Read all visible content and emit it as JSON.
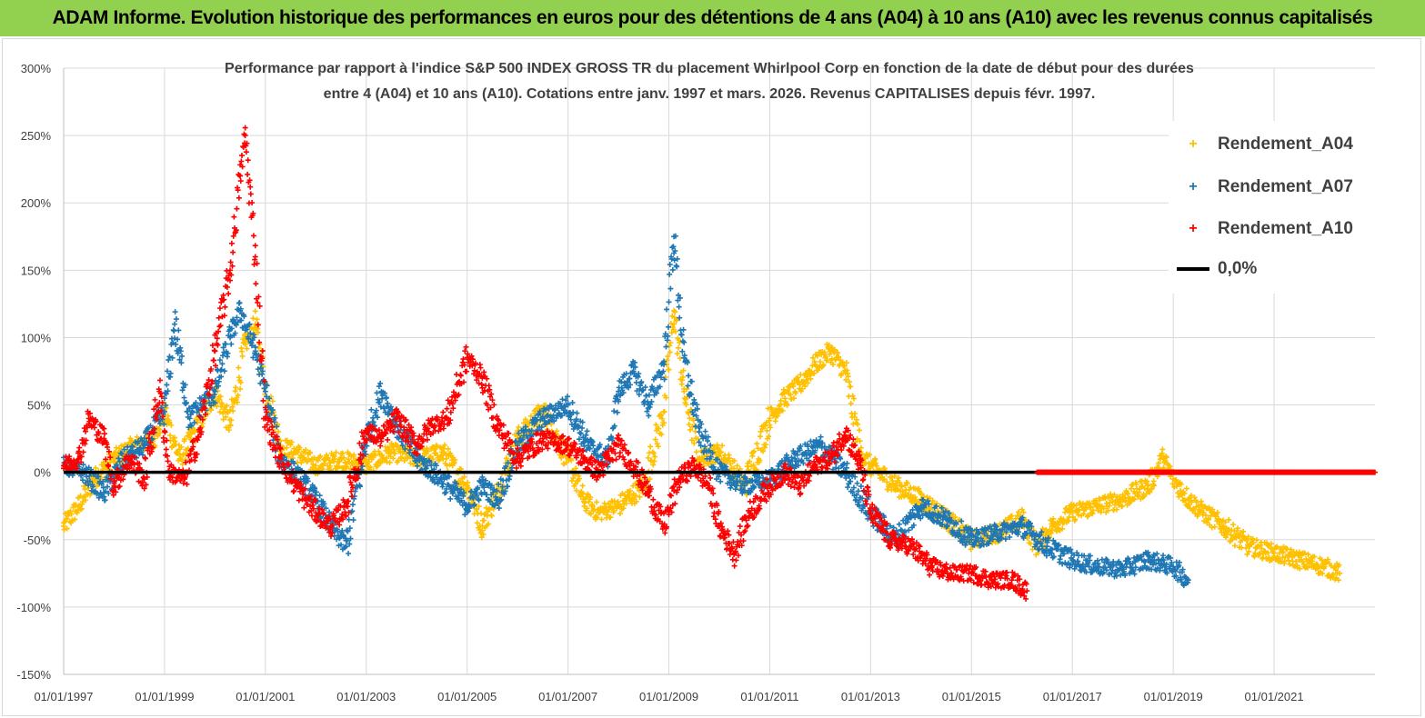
{
  "header": {
    "title": "ADAM Informe. Evolution historique des performances en euros pour des détentions de 4 ans (A04) à 10 ans (A10) avec les revenus connus capitalisés",
    "band_color": "#92d050"
  },
  "chart_data": {
    "type": "scatter",
    "title_line1": "Performance par rapport à l'indice S&P 500 INDEX GROSS TR  du placement Whirlpool Corp en fonction de la date de début pour des durées",
    "title_line2": "entre 4 (A04) et 10 ans (A10). Cotations entre janv. 1997 et mars. 2026. Revenus CAPITALISES depuis févr. 1997.",
    "xlabel": "",
    "ylabel": "",
    "x_unit": "year",
    "xlim": [
      1997.0,
      2023.0
    ],
    "ylim": [
      -150,
      300
    ],
    "y_ticks": [
      300,
      250,
      200,
      150,
      100,
      50,
      0,
      -50,
      -100,
      -150
    ],
    "y_tick_labels": [
      "300%",
      "250%",
      "200%",
      "150%",
      "100%",
      "50%",
      "0%",
      "-50%",
      "-100%",
      "-150%"
    ],
    "x_ticks": [
      1997,
      1999,
      2001,
      2003,
      2005,
      2007,
      2009,
      2011,
      2013,
      2015,
      2017,
      2019,
      2021
    ],
    "x_tick_labels": [
      "01/01/1997",
      "01/01/1999",
      "01/01/2001",
      "01/01/2003",
      "01/01/2005",
      "01/01/2007",
      "01/01/2009",
      "01/01/2011",
      "01/01/2013",
      "01/01/2015",
      "01/01/2017",
      "01/01/2019",
      "01/01/2021"
    ],
    "grid": true,
    "legend_position": "top-right",
    "series": [
      {
        "name": "Rendement_A04",
        "color": "#ffc000",
        "marker": "+",
        "x": [
          1997.0,
          1997.3,
          1997.6,
          1998.0,
          1998.4,
          1998.8,
          1999.0,
          1999.3,
          1999.6,
          2000.0,
          2000.3,
          2000.6,
          2000.8,
          2001.0,
          2001.3,
          2001.6,
          2002.0,
          2002.5,
          2003.0,
          2003.5,
          2004.0,
          2004.5,
          2005.0,
          2005.3,
          2005.6,
          2006.0,
          2006.5,
          2007.0,
          2007.3,
          2007.6,
          2008.0,
          2008.5,
          2008.9,
          2009.1,
          2009.3,
          2009.6,
          2010.0,
          2010.5,
          2011.0,
          2011.3,
          2011.6,
          2011.9,
          2012.2,
          2012.5,
          2012.8,
          2013.0,
          2013.5,
          2014.0,
          2014.5,
          2015.0,
          2015.5,
          2016.0,
          2016.3,
          2016.6,
          2017.0,
          2017.5,
          2018.0,
          2018.5,
          2018.8,
          2019.0,
          2019.3,
          2019.6,
          2020.0,
          2020.5,
          2021.0,
          2021.5,
          2022.0,
          2022.3
        ],
        "y": [
          -40,
          -25,
          -5,
          10,
          20,
          25,
          45,
          10,
          30,
          60,
          35,
          95,
          110,
          65,
          20,
          15,
          5,
          10,
          5,
          15,
          10,
          15,
          -10,
          -40,
          -15,
          25,
          45,
          10,
          -20,
          -30,
          -25,
          -10,
          45,
          120,
          60,
          10,
          15,
          -10,
          40,
          55,
          65,
          80,
          90,
          75,
          15,
          5,
          -10,
          -20,
          -35,
          -50,
          -45,
          -35,
          -55,
          -40,
          -30,
          -25,
          -20,
          -10,
          10,
          -5,
          -20,
          -30,
          -40,
          -55,
          -60,
          -65,
          -70,
          -75
        ]
      },
      {
        "name": "Rendement_A07",
        "color": "#1f77b4",
        "marker": "+",
        "x": [
          1997.0,
          1997.4,
          1997.8,
          1998.2,
          1998.6,
          1999.0,
          1999.2,
          1999.5,
          2000.0,
          2000.3,
          2000.5,
          2000.8,
          2001.0,
          2001.3,
          2001.7,
          2002.0,
          2002.3,
          2002.6,
          2003.0,
          2003.3,
          2003.6,
          2004.0,
          2004.5,
          2005.0,
          2005.3,
          2005.6,
          2006.0,
          2006.5,
          2007.0,
          2007.4,
          2007.8,
          2008.0,
          2008.3,
          2008.6,
          2008.9,
          2009.1,
          2009.3,
          2009.6,
          2010.0,
          2010.5,
          2011.0,
          2011.5,
          2012.0,
          2012.5,
          2013.0,
          2013.5,
          2014.0,
          2014.5,
          2015.0,
          2015.5,
          2016.0,
          2016.5,
          2017.0,
          2017.5,
          2018.0,
          2018.5,
          2019.0,
          2019.3
        ],
        "y": [
          5,
          0,
          -15,
          10,
          20,
          45,
          110,
          40,
          60,
          100,
          120,
          90,
          60,
          10,
          -5,
          -20,
          -40,
          -55,
          25,
          60,
          35,
          10,
          -5,
          -25,
          -10,
          -20,
          20,
          40,
          50,
          20,
          10,
          60,
          75,
          50,
          80,
          175,
          85,
          30,
          0,
          -10,
          -5,
          10,
          20,
          0,
          -30,
          -50,
          -25,
          -35,
          -50,
          -45,
          -40,
          -55,
          -65,
          -70,
          -72,
          -65,
          -70,
          -80
        ]
      },
      {
        "name": "Rendement_A10",
        "color": "#ff0000",
        "marker": "+",
        "x": [
          1997.0,
          1997.3,
          1997.5,
          1997.8,
          1998.0,
          1998.3,
          1998.6,
          1998.9,
          1999.1,
          1999.4,
          1999.7,
          2000.0,
          2000.3,
          2000.5,
          2000.6,
          2000.8,
          2001.0,
          2001.3,
          2001.6,
          2002.0,
          2002.3,
          2002.6,
          2003.0,
          2003.3,
          2003.6,
          2004.0,
          2004.3,
          2004.6,
          2005.0,
          2005.3,
          2005.6,
          2006.0,
          2006.5,
          2007.0,
          2007.3,
          2007.6,
          2008.0,
          2008.3,
          2008.6,
          2008.9,
          2009.2,
          2009.5,
          2009.8,
          2010.0,
          2010.3,
          2010.6,
          2011.0,
          2011.3,
          2011.6,
          2011.9,
          2012.2,
          2012.5,
          2012.8,
          2013.0,
          2013.4,
          2013.8,
          2014.2,
          2014.6,
          2015.0,
          2015.4,
          2015.8,
          2016.1
        ],
        "y": [
          5,
          10,
          40,
          25,
          -10,
          10,
          -5,
          60,
          0,
          -5,
          30,
          90,
          150,
          220,
          250,
          160,
          40,
          10,
          -10,
          -30,
          -40,
          -25,
          30,
          25,
          40,
          20,
          35,
          40,
          85,
          70,
          35,
          10,
          25,
          20,
          10,
          0,
          20,
          5,
          -15,
          -40,
          -5,
          5,
          -10,
          -40,
          -60,
          -30,
          -10,
          0,
          -10,
          5,
          10,
          30,
          5,
          -30,
          -50,
          -55,
          -70,
          -75,
          -75,
          -80,
          -80,
          -88
        ]
      }
    ],
    "reference_line": {
      "name": "0,0%",
      "value": 0,
      "color": "#000000"
    },
    "flat_segment": {
      "series": "Rendement_A10",
      "x_start": 2016.3,
      "x_end": 2023.0,
      "value": 0
    }
  }
}
